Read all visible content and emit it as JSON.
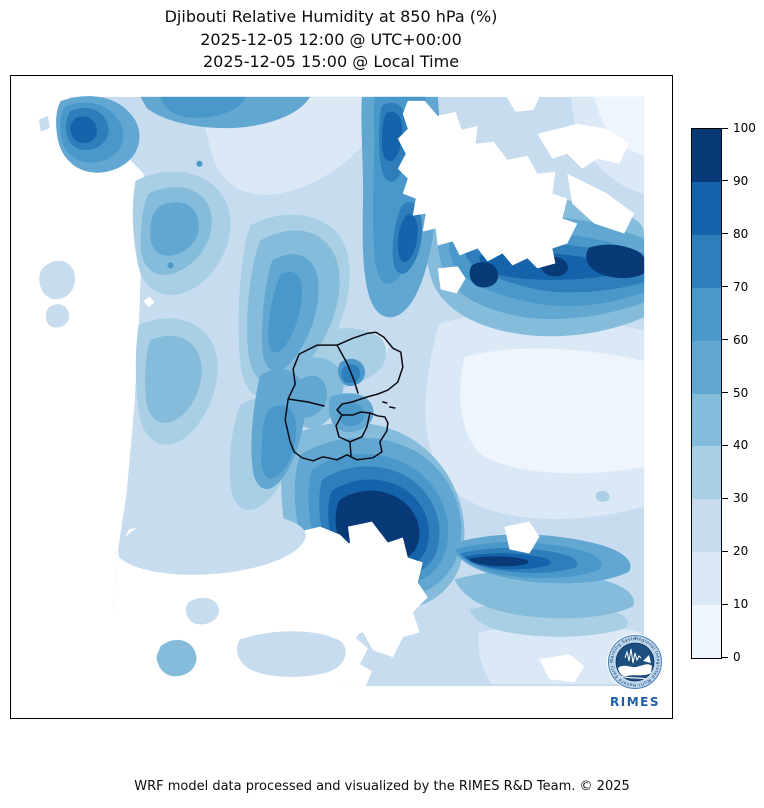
{
  "title": {
    "line1": "Djibouti Relative Humidity at 850 hPa (%)",
    "line2": "2025-12-05 12:00 @ UTC+00:00",
    "line3": "2025-12-05 15:00 @ Local Time"
  },
  "footer": {
    "credit": "WRF model data processed and visualized by the RIMES R&D Team. © 2025"
  },
  "logo": {
    "name": "RIMES",
    "ring_text": "Regional Integrated Multi-Hazard Early Warning System"
  },
  "chart_data": {
    "type": "heatmap",
    "subtype": "filled-contour-weather-map",
    "title": "Djibouti Relative Humidity at 850 hPa (%)",
    "timestamp_utc": "2025-12-05 12:00 @ UTC+00:00",
    "timestamp_local": "2025-12-05 15:00 @ Local Time",
    "variable": "Relative Humidity",
    "pressure_level": "850 hPa",
    "units": "%",
    "region": "Djibouti and surrounding area",
    "colormap": "Blues",
    "overlay": "Djibouti administrative boundaries (black outlines)",
    "legend_position": "right",
    "colorbar": {
      "min": 0,
      "max": 100,
      "interval": 10,
      "ticks": [
        0,
        10,
        20,
        30,
        40,
        50,
        60,
        70,
        80,
        90,
        100
      ],
      "colors": [
        "#eff5fc",
        "#dbe9f6",
        "#c7dcef",
        "#a9cfe4",
        "#85bcdc",
        "#61a7d2",
        "#4a98c9",
        "#2e7ebc",
        "#1563aa",
        "#083a78"
      ]
    },
    "grid_note": "Approximate RH (%) sampled on a 10x10 grid over the mapped domain; rows top to bottom, columns west to east; 0 = white / below lowest contour.",
    "rh_grid_approx": [
      [
        65,
        45,
        35,
        30,
        65,
        10,
        5,
        10,
        15,
        15
      ],
      [
        0,
        45,
        40,
        30,
        60,
        5,
        0,
        25,
        55,
        75
      ],
      [
        0,
        50,
        45,
        35,
        55,
        30,
        45,
        85,
        95,
        70
      ],
      [
        0,
        45,
        55,
        45,
        40,
        25,
        30,
        45,
        50,
        40
      ],
      [
        0,
        40,
        50,
        60,
        35,
        15,
        10,
        15,
        25,
        30
      ],
      [
        0,
        35,
        45,
        70,
        55,
        20,
        5,
        5,
        15,
        25
      ],
      [
        0,
        30,
        40,
        75,
        95,
        55,
        15,
        5,
        10,
        20
      ],
      [
        0,
        25,
        30,
        40,
        85,
        90,
        60,
        40,
        30,
        25
      ],
      [
        0,
        15,
        25,
        15,
        35,
        55,
        45,
        35,
        30,
        30
      ],
      [
        0,
        5,
        15,
        25,
        10,
        25,
        35,
        25,
        25,
        30
      ]
    ],
    "features": [
      {
        "name": "moist band",
        "location": "northeast of Djibouti running east",
        "rh_range": "80-100"
      },
      {
        "name": "moist core",
        "location": "immediately south of Djibouti borders",
        "rh_range": "90-100"
      },
      {
        "name": "moist streak",
        "location": "north-central vertical band",
        "rh_range": "70-90"
      },
      {
        "name": "dry zone",
        "location": "east-central sweep and map margins",
        "rh_range": "0-20"
      },
      {
        "name": "moderate humidity",
        "location": "western half of domain",
        "rh_range": "30-60"
      }
    ]
  }
}
